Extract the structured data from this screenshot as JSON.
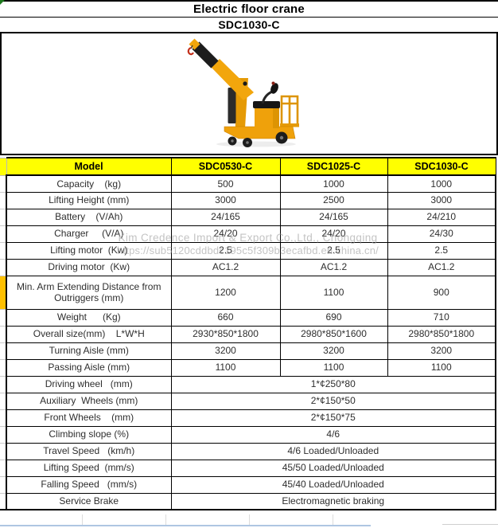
{
  "title": {
    "product": "Electric floor crane",
    "model": "SDC1030-C"
  },
  "watermark": {
    "company": "Kim Credence Import & Export Co.,Ltd., Chongqing",
    "url": "https://sub5120cddbdc195c5f309b3ecafbd.en.china.cn/"
  },
  "product_image": {
    "name": "electric-floor-crane-photo",
    "body_color": "#F0A30B",
    "dark_color": "#1C1C1C",
    "hook_color": "#C3301B"
  },
  "spec_table": {
    "header_bg": "#FFFF00",
    "header": {
      "model_label": "Model",
      "columns": [
        "SDC0530-C",
        "SDC1025-C",
        "SDC1030-C"
      ]
    },
    "rows": [
      {
        "label": "Capacity    (kg)",
        "values": [
          "500",
          "1000",
          "1000"
        ]
      },
      {
        "label": "Lifting Height (mm)",
        "values": [
          "3000",
          "2500",
          "3000"
        ]
      },
      {
        "label": "Battery    (V/Ah)",
        "values": [
          "24/165",
          "24/165",
          "24/210"
        ]
      },
      {
        "label": "Charger     (V/A)",
        "values": [
          "24/20",
          "24/20",
          "24/30"
        ]
      },
      {
        "label": "Lifting motor  (Kw)",
        "values": [
          "2.5",
          "2.5",
          "2.5"
        ]
      },
      {
        "label": "Driving motor  (Kw)",
        "values": [
          "AC1.2",
          "AC1.2",
          "AC1.2"
        ]
      },
      {
        "label": "Min. Arm Extending Distance from Outriggers (mm)",
        "values": [
          "1200",
          "1100",
          "900"
        ],
        "tall": true,
        "strip": "#FFC000"
      },
      {
        "label": "Weight      (Kg)",
        "values": [
          "660",
          "690",
          "710"
        ]
      },
      {
        "label": "Overall size(mm)    L*W*H",
        "values": [
          "2930*850*1800",
          "2980*850*1600",
          "2980*850*1800"
        ]
      },
      {
        "label": "Turning Aisle (mm)",
        "values": [
          "3200",
          "3200",
          "3200"
        ]
      },
      {
        "label": "Passing Aisle (mm)",
        "values": [
          "1100",
          "1100",
          "1100"
        ]
      },
      {
        "label": "Driving wheel   (mm)",
        "values": [
          "1*¢250*80"
        ]
      },
      {
        "label": "Auxiliary  Wheels (mm)",
        "values": [
          "2*¢150*50"
        ]
      },
      {
        "label": "Front Wheels    (mm)",
        "values": [
          "2*¢150*75"
        ]
      },
      {
        "label": "Climbing slope (%)",
        "values": [
          "4/6"
        ]
      },
      {
        "label": "Travel Speed   (km/h)",
        "values": [
          "4/6 Loaded/Unloaded"
        ]
      },
      {
        "label": "Lifting Speed  (mm/s)",
        "values": [
          "45/50 Loaded/Unloaded"
        ]
      },
      {
        "label": "Falling Speed   (mm/s)",
        "values": [
          "45/40 Loaded/Unloaded"
        ]
      },
      {
        "label": "Service Brake",
        "values": [
          "Electromagnetic braking"
        ]
      }
    ]
  }
}
